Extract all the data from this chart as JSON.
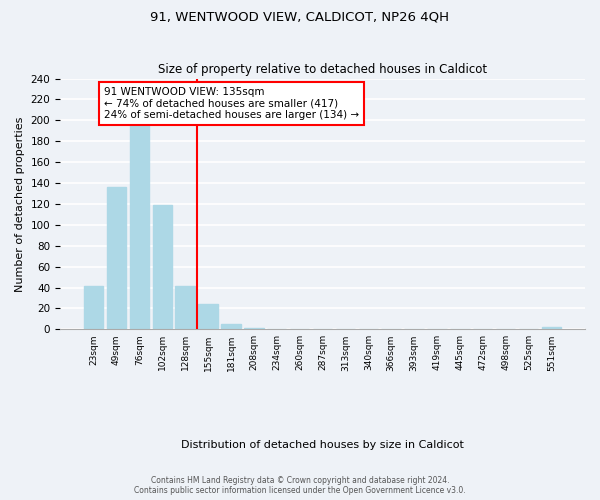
{
  "title": "91, WENTWOOD VIEW, CALDICOT, NP26 4QH",
  "subtitle": "Size of property relative to detached houses in Caldicot",
  "xlabel": "Distribution of detached houses by size in Caldicot",
  "ylabel": "Number of detached properties",
  "bar_labels": [
    "23sqm",
    "49sqm",
    "76sqm",
    "102sqm",
    "128sqm",
    "155sqm",
    "181sqm",
    "208sqm",
    "234sqm",
    "260sqm",
    "287sqm",
    "313sqm",
    "340sqm",
    "366sqm",
    "393sqm",
    "419sqm",
    "445sqm",
    "472sqm",
    "498sqm",
    "525sqm",
    "551sqm"
  ],
  "bar_values": [
    41,
    136,
    202,
    119,
    41,
    24,
    5,
    1,
    0,
    0,
    0,
    0,
    0,
    0,
    0,
    0,
    0,
    0,
    0,
    0,
    2
  ],
  "bar_color": "#add8e6",
  "bar_edge_color": "#add8e6",
  "vline_x": 4.5,
  "vline_color": "red",
  "ylim": [
    0,
    240
  ],
  "yticks": [
    0,
    20,
    40,
    60,
    80,
    100,
    120,
    140,
    160,
    180,
    200,
    220,
    240
  ],
  "annotation_title": "91 WENTWOOD VIEW: 135sqm",
  "annotation_line1": "← 74% of detached houses are smaller (417)",
  "annotation_line2": "24% of semi-detached houses are larger (134) →",
  "annotation_box_color": "white",
  "annotation_box_edge": "red",
  "footer1": "Contains HM Land Registry data © Crown copyright and database right 2024.",
  "footer2": "Contains public sector information licensed under the Open Government Licence v3.0.",
  "background_color": "#eef2f7",
  "grid_color": "white"
}
